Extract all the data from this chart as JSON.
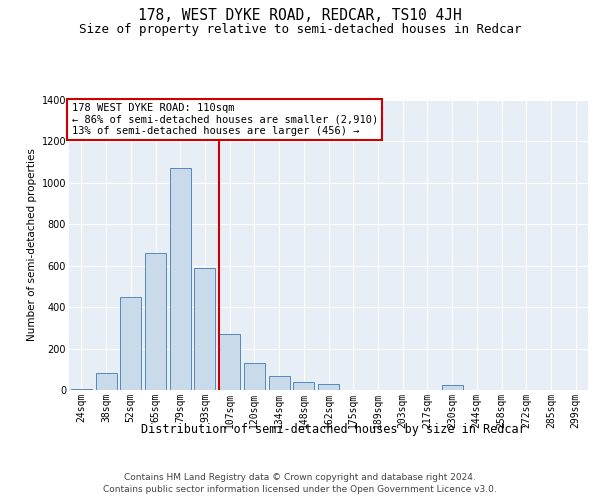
{
  "title": "178, WEST DYKE ROAD, REDCAR, TS10 4JH",
  "subtitle": "Size of property relative to semi-detached houses in Redcar",
  "xlabel": "Distribution of semi-detached houses by size in Redcar",
  "ylabel": "Number of semi-detached properties",
  "footer1": "Contains HM Land Registry data © Crown copyright and database right 2024.",
  "footer2": "Contains public sector information licensed under the Open Government Licence v3.0.",
  "annotation_line1": "178 WEST DYKE ROAD: 110sqm",
  "annotation_line2": "← 86% of semi-detached houses are smaller (2,910)",
  "annotation_line3": "13% of semi-detached houses are larger (456) →",
  "bar_labels": [
    "24sqm",
    "38sqm",
    "52sqm",
    "65sqm",
    "79sqm",
    "93sqm",
    "107sqm",
    "120sqm",
    "134sqm",
    "148sqm",
    "162sqm",
    "175sqm",
    "189sqm",
    "203sqm",
    "217sqm",
    "230sqm",
    "244sqm",
    "258sqm",
    "272sqm",
    "285sqm",
    "299sqm"
  ],
  "bar_values": [
    5,
    80,
    450,
    660,
    1070,
    590,
    270,
    130,
    70,
    40,
    30,
    0,
    0,
    0,
    0,
    25,
    0,
    0,
    0,
    0,
    0
  ],
  "bar_color": "#c9daea",
  "bar_edge_color": "#5588bb",
  "vline_color": "#cc0000",
  "vline_x": 6.0,
  "background_color": "#e8eef5",
  "grid_color": "#ffffff",
  "ylim_max": 1400,
  "yticks": [
    0,
    200,
    400,
    600,
    800,
    1000,
    1200,
    1400
  ],
  "title_fontsize": 10.5,
  "subtitle_fontsize": 9,
  "tick_fontsize": 7,
  "xlabel_fontsize": 8.5,
  "ylabel_fontsize": 7.5,
  "footer_fontsize": 6.5,
  "annot_fontsize": 7.5
}
